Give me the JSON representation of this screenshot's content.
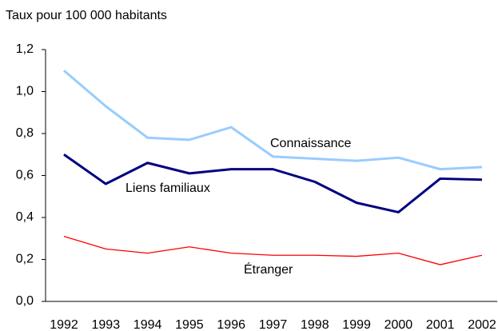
{
  "chart_data": {
    "type": "line",
    "title": "Taux pour 100 000 habitants",
    "categories": [
      "1992",
      "1993",
      "1994",
      "1995",
      "1996",
      "1997",
      "1998",
      "1999",
      "2000",
      "2001",
      "2002"
    ],
    "series": [
      {
        "name": "Connaissance",
        "color": "#99ccff",
        "values": [
          1.1,
          0.93,
          0.78,
          0.77,
          0.83,
          0.69,
          0.68,
          0.67,
          0.685,
          0.63,
          0.64
        ]
      },
      {
        "name": "Liens familiaux",
        "color": "#000080",
        "values": [
          0.7,
          0.56,
          0.66,
          0.61,
          0.63,
          0.63,
          0.57,
          0.47,
          0.425,
          0.585,
          0.58
        ]
      },
      {
        "name": "Étranger",
        "color": "#ff0000",
        "values": [
          0.31,
          0.25,
          0.23,
          0.26,
          0.23,
          0.22,
          0.22,
          0.215,
          0.23,
          0.175,
          0.22
        ]
      }
    ],
    "ylim": [
      0,
      1.2
    ],
    "yticks": [
      {
        "value": 0,
        "label": "0,0"
      },
      {
        "value": 0.2,
        "label": "0,2"
      },
      {
        "value": 0.4,
        "label": "0,4"
      },
      {
        "value": 0.6,
        "label": "0,6"
      },
      {
        "value": 0.8,
        "label": "0,8"
      },
      {
        "value": 1.0,
        "label": "1,0"
      },
      {
        "value": 1.2,
        "label": "1,2"
      }
    ],
    "grid": false
  }
}
